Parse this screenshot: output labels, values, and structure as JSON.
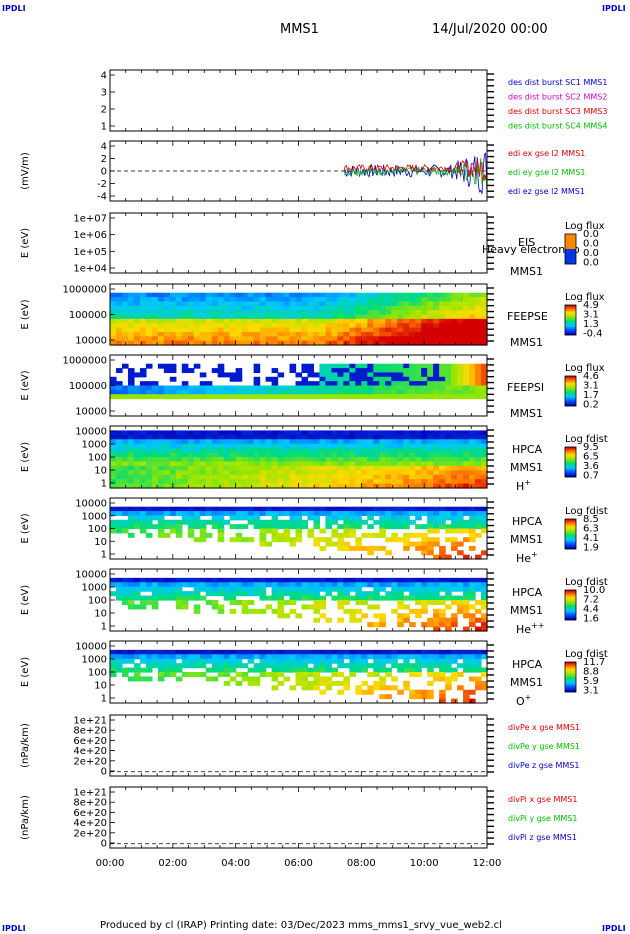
{
  "corners": {
    "tl": "IPDLI",
    "tr": "IPDLI",
    "bl": "IPDLI",
    "br": "IPDLI"
  },
  "header": {
    "spacecraft": "MMS1",
    "datetime": "14/Jul/2020 00:00"
  },
  "footer": {
    "text": "Produced by cl (IRAP)    Printing date: 03/Dec/2023    mms_mms1_srvy_vue_web2.cl"
  },
  "colors": {
    "panel_border": "#000000",
    "red": "#dd0000",
    "green": "#00bb00",
    "blue": "#0000cc",
    "magenta": "#cc00cc"
  },
  "chart_data": {
    "type": "multi-panel time series / spectrogram",
    "x_ticks": [
      "00:00",
      "02:00",
      "04:00",
      "06:00",
      "08:00",
      "10:00",
      "12:00"
    ],
    "panels": [
      {
        "id": "p1",
        "type": "line",
        "yticks": [
          "4",
          "3",
          "2",
          "1"
        ],
        "ylabel": "",
        "legend": [
          {
            "text": "des dist burst SC1 MMS1",
            "color": "#0000cc"
          },
          {
            "text": "des dist burst SC2 MMS2",
            "color": "#cc00cc"
          },
          {
            "text": "des dist burst SC3 MMS3",
            "color": "#dd0000"
          },
          {
            "text": "des dist burst SC4 MMS4",
            "color": "#00bb00"
          }
        ]
      },
      {
        "id": "p2",
        "type": "line",
        "yticks": [
          "4",
          "2",
          "0",
          "-2",
          "-4"
        ],
        "ylabel": "(mV/m)",
        "legend": [
          {
            "text": "edi ex gse l2 MMS1",
            "color": "#dd0000"
          },
          {
            "text": "edi ey gse l2 MMS1",
            "color": "#00bb00"
          },
          {
            "text": "edi ez gse l2 MMS1",
            "color": "#0000cc"
          }
        ]
      },
      {
        "id": "p3",
        "type": "heatmap",
        "yticks": [
          "1e+07",
          "1e+06",
          "1e+05",
          "1e+04"
        ],
        "ylabel": "E (eV)",
        "labels": [
          "EIS",
          "MMS1"
        ],
        "extra": "Heavy electron to",
        "cbar_title": "Log flux",
        "cbar_ticks": [
          "0.0",
          "0.0",
          "0.0",
          "0.0"
        ]
      },
      {
        "id": "p4",
        "type": "heatmap",
        "yticks": [
          "1000000",
          "100000",
          "10000"
        ],
        "ylabel": "E (eV)",
        "labels": [
          "FEEPSE",
          "MMS1"
        ],
        "cbar_title": "Log flux",
        "cbar_ticks": [
          "4.9",
          "3.1",
          "1.3",
          "-0.4"
        ]
      },
      {
        "id": "p5",
        "type": "heatmap",
        "yticks": [
          "1000000",
          "100000",
          "10000"
        ],
        "ylabel": "E (eV)",
        "labels": [
          "FEEPSI",
          "MMS1"
        ],
        "cbar_title": "Log flux",
        "cbar_ticks": [
          "4.6",
          "3.1",
          "1.7",
          "0.2"
        ]
      },
      {
        "id": "p6",
        "type": "heatmap",
        "yticks": [
          "10000",
          "1000",
          "100",
          "10",
          "1"
        ],
        "ylabel": "E (eV)",
        "labels": [
          "HPCA",
          "MMS1",
          "H+"
        ],
        "cbar_title": "Log fdist",
        "cbar_ticks": [
          "9.5",
          "6.5",
          "3.6",
          "0.7"
        ]
      },
      {
        "id": "p7",
        "type": "heatmap",
        "yticks": [
          "10000",
          "1000",
          "100",
          "10",
          "1"
        ],
        "ylabel": "E (eV)",
        "labels": [
          "HPCA",
          "MMS1",
          "He+"
        ],
        "cbar_title": "Log fdist",
        "cbar_ticks": [
          "8.5",
          "6.3",
          "4.1",
          "1.9"
        ]
      },
      {
        "id": "p8",
        "type": "heatmap",
        "yticks": [
          "10000",
          "1000",
          "100",
          "10",
          "1"
        ],
        "ylabel": "E (eV)",
        "labels": [
          "HPCA",
          "MMS1",
          "He++"
        ],
        "cbar_title": "Log fdist",
        "cbar_ticks": [
          "10.0",
          "7.2",
          "4.4",
          "1.6"
        ]
      },
      {
        "id": "p9",
        "type": "heatmap",
        "yticks": [
          "10000",
          "1000",
          "100",
          "10",
          "1"
        ],
        "ylabel": "E (eV)",
        "labels": [
          "HPCA",
          "MMS1",
          "O+"
        ],
        "cbar_title": "Log fdist",
        "cbar_ticks": [
          "11.7",
          "8.8",
          "5.9",
          "3.1"
        ]
      },
      {
        "id": "p10",
        "type": "line",
        "yticks": [
          "1e+21",
          "8e+20",
          "6e+20",
          "4e+20",
          "2e+20",
          "0"
        ],
        "ylabel": "(nPa/km)",
        "legend": [
          {
            "text": "divPe x gse MMS1",
            "color": "#dd0000"
          },
          {
            "text": "divPe y gse MMS1",
            "color": "#00bb00"
          },
          {
            "text": "divPe z gse MMS1",
            "color": "#0000cc"
          }
        ]
      },
      {
        "id": "p11",
        "type": "line",
        "yticks": [
          "1e+21",
          "8e+20",
          "6e+20",
          "4e+20",
          "2e+20",
          "0"
        ],
        "ylabel": "(nPa/km)",
        "legend": [
          {
            "text": "divPi x gse MMS1",
            "color": "#dd0000"
          },
          {
            "text": "divPi y gse MMS1",
            "color": "#00bb00"
          },
          {
            "text": "divPi z gse MMS1",
            "color": "#0000cc"
          }
        ]
      }
    ]
  }
}
